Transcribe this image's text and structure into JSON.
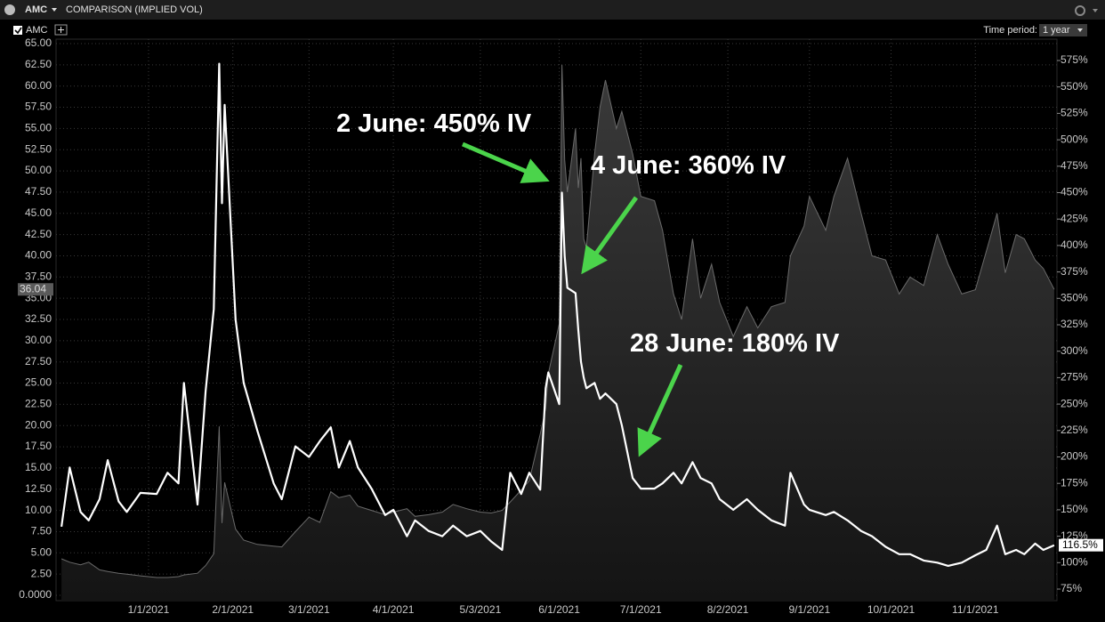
{
  "toolbar": {
    "symbol": "AMC",
    "study": "COMPARISON (IMPLIED VOL)",
    "period_label": "Time period:",
    "period_value": "1 year"
  },
  "chart_data": {
    "type": "line",
    "x": [
      "11/30/2020",
      "12/3/2020",
      "12/7/2020",
      "12/10/2020",
      "12/14/2020",
      "12/17/2020",
      "12/21/2020",
      "12/24/2020",
      "12/29/2020",
      "1/4/2021",
      "1/8/2021",
      "1/12/2021",
      "1/14/2021",
      "1/19/2021",
      "1/22/2021",
      "1/25/2021",
      "1/27/2021",
      "1/28/2021",
      "1/29/2021",
      "2/2/2021",
      "2/5/2021",
      "2/10/2021",
      "2/16/2021",
      "2/19/2021",
      "2/24/2021",
      "3/1/2021",
      "3/5/2021",
      "3/9/2021",
      "3/12/2021",
      "3/16/2021",
      "3/19/2021",
      "3/24/2021",
      "3/29/2021",
      "4/1/2021",
      "4/6/2021",
      "4/9/2021",
      "4/14/2021",
      "4/19/2021",
      "4/23/2021",
      "4/28/2021",
      "5/3/2021",
      "5/7/2021",
      "5/11/2021",
      "5/14/2021",
      "5/18/2021",
      "5/21/2021",
      "5/25/2021",
      "5/27/2021",
      "5/28/2021",
      "6/1/2021",
      "6/2/2021",
      "6/3/2021",
      "6/4/2021",
      "6/7/2021",
      "6/8/2021",
      "6/9/2021",
      "6/10/2021",
      "6/11/2021",
      "6/14/2021",
      "6/16/2021",
      "6/18/2021",
      "6/22/2021",
      "6/24/2021",
      "6/28/2021",
      "7/1/2021",
      "7/6/2021",
      "7/9/2021",
      "7/13/2021",
      "7/16/2021",
      "7/20/2021",
      "7/23/2021",
      "7/27/2021",
      "7/30/2021",
      "8/4/2021",
      "8/9/2021",
      "8/13/2021",
      "8/18/2021",
      "8/23/2021",
      "8/25/2021",
      "8/30/2021",
      "9/1/2021",
      "9/7/2021",
      "9/10/2021",
      "9/15/2021",
      "9/20/2021",
      "9/24/2021",
      "9/29/2021",
      "10/4/2021",
      "10/8/2021",
      "10/13/2021",
      "10/18/2021",
      "10/22/2021",
      "10/27/2021",
      "11/1/2021",
      "11/5/2021",
      "11/9/2021",
      "11/12/2021",
      "11/16/2021",
      "11/19/2021",
      "11/23/2021",
      "11/26/2021",
      "11/30/2021"
    ],
    "series": [
      {
        "name": "AMC",
        "style": "area",
        "color": "#6a6a6a",
        "last_value_label": "36.04",
        "values": [
          4.3,
          3.9,
          3.6,
          3.9,
          3.0,
          2.8,
          2.6,
          2.5,
          2.3,
          2.1,
          2.1,
          2.2,
          2.4,
          2.6,
          3.5,
          4.9,
          19.9,
          8.5,
          13.3,
          7.8,
          6.5,
          6.0,
          5.8,
          5.7,
          7.5,
          9.2,
          8.6,
          12.2,
          11.5,
          11.8,
          10.5,
          10.0,
          9.5,
          9.8,
          10.2,
          9.3,
          9.5,
          9.8,
          10.7,
          10.2,
          9.8,
          9.7,
          10.0,
          11.0,
          12.4,
          13.5,
          19.0,
          22.0,
          26.1,
          32.0,
          62.5,
          51.3,
          47.5,
          55.0,
          48.0,
          51.5,
          42.0,
          41.0,
          52.0,
          57.5,
          60.7,
          55.0,
          57.0,
          52.0,
          47.0,
          46.5,
          43.0,
          35.5,
          32.5,
          42.0,
          35.0,
          39.0,
          34.5,
          30.5,
          34.0,
          31.5,
          34.0,
          34.5,
          40.0,
          43.5,
          47.0,
          43.0,
          47.0,
          51.5,
          45.0,
          40.0,
          39.5,
          35.5,
          37.5,
          36.5,
          42.5,
          39.0,
          35.5,
          36.0,
          40.5,
          45.0,
          38.0,
          42.5,
          42.0,
          39.5,
          38.5,
          36.04
        ]
      },
      {
        "style": "line",
        "axis": "y2",
        "color": "#ffffff",
        "last_value_label": "116.5%",
        "values": [
          134,
          190,
          148,
          140,
          160,
          197,
          158,
          148,
          166,
          165,
          185,
          175,
          270,
          155,
          262,
          340,
          572,
          440,
          533,
          330,
          270,
          225,
          175,
          160,
          210,
          200,
          215,
          228,
          190,
          215,
          190,
          170,
          145,
          150,
          125,
          140,
          130,
          125,
          135,
          125,
          130,
          120,
          112,
          185,
          165,
          185,
          169,
          265,
          280,
          250,
          450,
          390,
          360,
          355,
          320,
          290,
          275,
          265,
          270,
          255,
          260,
          250,
          230,
          180,
          170,
          170,
          175,
          185,
          175,
          195,
          180,
          175,
          160,
          150,
          160,
          150,
          140,
          135,
          185,
          155,
          150,
          145,
          148,
          140,
          130,
          125,
          115,
          108,
          108,
          102,
          100,
          97,
          100,
          107,
          112,
          135,
          108,
          112,
          108,
          118,
          112,
          116.5
        ]
      }
    ],
    "xlim": [
      "11/28/2020",
      "12/1/2021"
    ],
    "xticks": [
      "1/1/2021",
      "2/1/2021",
      "3/1/2021",
      "4/1/2021",
      "5/3/2021",
      "6/1/2021",
      "7/1/2021",
      "8/2/2021",
      "9/1/2021",
      "10/1/2021",
      "11/1/2021"
    ],
    "ylim": [
      0,
      65
    ],
    "yticks": [
      {
        "value": 0,
        "label": "0.0000"
      },
      {
        "value": 2.5,
        "label": "2.50"
      },
      {
        "value": 5,
        "label": "5.00"
      },
      {
        "value": 7.5,
        "label": "7.50"
      },
      {
        "value": 10,
        "label": "10.00"
      },
      {
        "value": 12.5,
        "label": "12.50"
      },
      {
        "value": 15,
        "label": "15.00"
      },
      {
        "value": 17.5,
        "label": "17.50"
      },
      {
        "value": 20,
        "label": "20.00"
      },
      {
        "value": 22.5,
        "label": "22.50"
      },
      {
        "value": 25,
        "label": "25.00"
      },
      {
        "value": 27.5,
        "label": "27.50"
      },
      {
        "value": 30,
        "label": "30.00"
      },
      {
        "value": 32.5,
        "label": "32.50"
      },
      {
        "value": 35,
        "label": "35.00"
      },
      {
        "value": 37.5,
        "label": "37.50"
      },
      {
        "value": 40,
        "label": "40.00"
      },
      {
        "value": 42.5,
        "label": "42.50"
      },
      {
        "value": 45,
        "label": "45.00"
      },
      {
        "value": 47.5,
        "label": "47.50"
      },
      {
        "value": 50,
        "label": "50.00"
      },
      {
        "value": 52.5,
        "label": "52.50"
      },
      {
        "value": 55,
        "label": "55.00"
      },
      {
        "value": 57.5,
        "label": "57.50"
      },
      {
        "value": 60,
        "label": "60.00"
      },
      {
        "value": 62.5,
        "label": "62.50"
      },
      {
        "value": 65,
        "label": "65.00"
      }
    ],
    "y2lim": [
      75,
      575
    ],
    "y2ticks": [
      {
        "value": 75,
        "label": "75%"
      },
      {
        "value": 100,
        "label": "100%"
      },
      {
        "value": 125,
        "label": "125%"
      },
      {
        "value": 150,
        "label": "150%"
      },
      {
        "value": 175,
        "label": "175%"
      },
      {
        "value": 200,
        "label": "200%"
      },
      {
        "value": 225,
        "label": "225%"
      },
      {
        "value": 250,
        "label": "250%"
      },
      {
        "value": 275,
        "label": "275%"
      },
      {
        "value": 300,
        "label": "300%"
      },
      {
        "value": 325,
        "label": "325%"
      },
      {
        "value": 350,
        "label": "350%"
      },
      {
        "value": 375,
        "label": "375%"
      },
      {
        "value": 400,
        "label": "400%"
      },
      {
        "value": 425,
        "label": "425%"
      },
      {
        "value": 450,
        "label": "450%"
      },
      {
        "value": 475,
        "label": "475%"
      },
      {
        "value": 500,
        "label": "500%"
      },
      {
        "value": 525,
        "label": "525%"
      },
      {
        "value": 550,
        "label": "550%"
      },
      {
        "value": 575,
        "label": "575%"
      }
    ],
    "grid": true,
    "annotations": [
      "2 June: 450% IV",
      "4 June: 360% IV",
      "28 June: 180% IV"
    ]
  }
}
